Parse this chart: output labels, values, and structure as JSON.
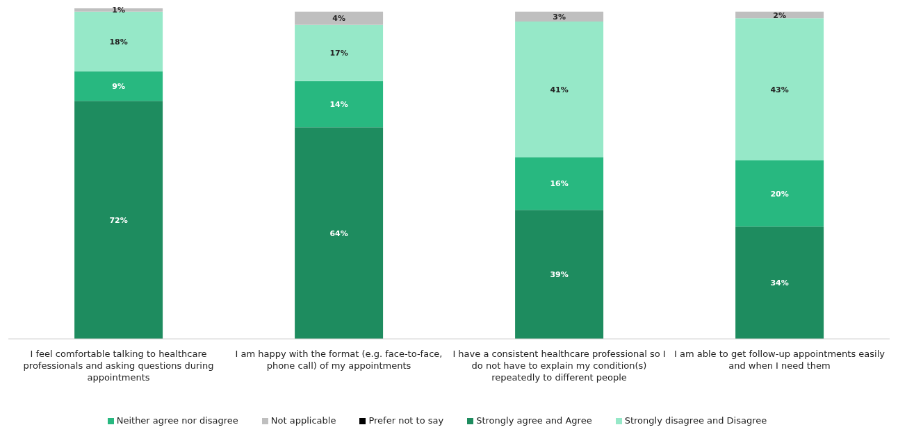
{
  "chart_data": {
    "type": "bar",
    "stacked": true,
    "categories": [
      "I feel comfortable talking to healthcare professionals and asking questions during appointments",
      "I am happy with the format (e.g. face-to-face, phone call) of my appointments",
      "I have a consistent healthcare professional so I do not have to explain my condition(s) repeatedly to different people",
      "I am able to get follow-up appointments easily and when I need them"
    ],
    "series": [
      {
        "name": "Strongly agree and Agree",
        "color": "#1e8c5f",
        "values": [
          72,
          64,
          39,
          34
        ],
        "value_labels": [
          "72%",
          "64%",
          "39%",
          "34%"
        ]
      },
      {
        "name": "Neither agree nor disagree",
        "color": "#28b880",
        "values": [
          9,
          14,
          16,
          20
        ],
        "value_labels": [
          "9%",
          "14%",
          "16%",
          "20%"
        ]
      },
      {
        "name": "Strongly disagree and Disagree",
        "color": "#96e8c8",
        "values": [
          18,
          17,
          41,
          43
        ],
        "value_labels": [
          "18%",
          "17%",
          "41%",
          "43%"
        ]
      },
      {
        "name": "Not applicable",
        "color": "#bfbfbf",
        "values": [
          1,
          4,
          3,
          2
        ],
        "value_labels": [
          "1%",
          "4%",
          "3%",
          "2%"
        ]
      },
      {
        "name": "Prefer not to say",
        "color": "#000000",
        "values": [
          0,
          0,
          0,
          0
        ],
        "value_labels": [
          null,
          null,
          null,
          null
        ]
      }
    ],
    "ylim": [
      0,
      100
    ],
    "tick_labels": "x",
    "grid": false,
    "legend": "bottom"
  }
}
